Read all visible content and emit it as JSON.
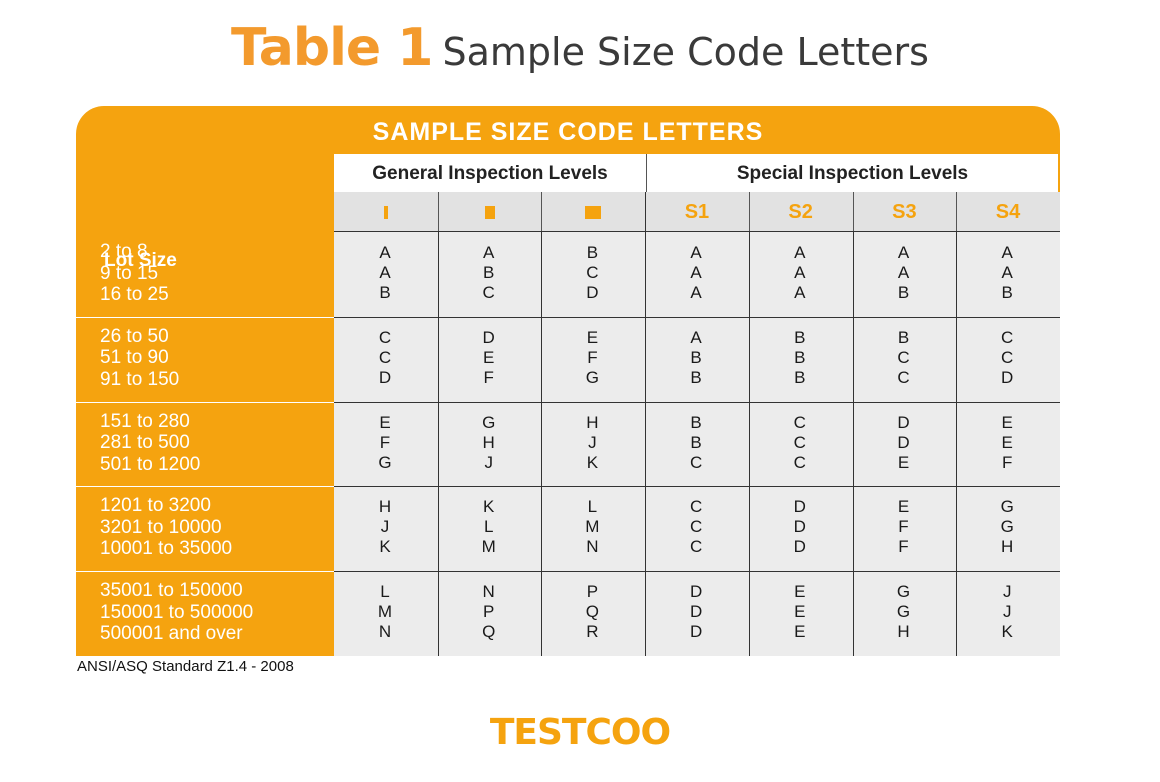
{
  "title": {
    "strong": "Table 1",
    "rest": "Sample Size Code Letters"
  },
  "table": {
    "banner": "SAMPLE SIZE CODE LETTERS",
    "lot_header": "Lot Size",
    "groups": [
      "General Inspection Levels",
      "Special Inspection Levels"
    ],
    "levels": [
      "I",
      "II",
      "III",
      "S1",
      "S2",
      "S3",
      "S4"
    ],
    "accent_color": "#f5a30f",
    "row_groups": [
      {
        "lots": [
          "2 to 8",
          "9 to 15",
          "16 to 25"
        ],
        "codes": [
          [
            "A",
            "A",
            "B"
          ],
          [
            "A",
            "B",
            "C"
          ],
          [
            "B",
            "C",
            "D"
          ],
          [
            "A",
            "A",
            "A"
          ],
          [
            "A",
            "A",
            "A"
          ],
          [
            "A",
            "A",
            "B"
          ],
          [
            "A",
            "A",
            "B"
          ]
        ]
      },
      {
        "lots": [
          "26 to 50",
          "51 to 90",
          "91 to 150"
        ],
        "codes": [
          [
            "C",
            "C",
            "D"
          ],
          [
            "D",
            "E",
            "F"
          ],
          [
            "E",
            "F",
            "G"
          ],
          [
            "A",
            "B",
            "B"
          ],
          [
            "B",
            "B",
            "B"
          ],
          [
            "B",
            "C",
            "C"
          ],
          [
            "C",
            "C",
            "D"
          ]
        ]
      },
      {
        "lots": [
          "151 to 280",
          "281 to 500",
          "501 to 1200"
        ],
        "codes": [
          [
            "E",
            "F",
            "G"
          ],
          [
            "G",
            "H",
            "J"
          ],
          [
            "H",
            "J",
            "K"
          ],
          [
            "B",
            "B",
            "C"
          ],
          [
            "C",
            "C",
            "C"
          ],
          [
            "D",
            "D",
            "E"
          ],
          [
            "E",
            "E",
            "F"
          ]
        ]
      },
      {
        "lots": [
          "1201 to 3200",
          "3201 to 10000",
          "10001 to 35000"
        ],
        "codes": [
          [
            "H",
            "J",
            "K"
          ],
          [
            "K",
            "L",
            "M"
          ],
          [
            "L",
            "M",
            "N"
          ],
          [
            "C",
            "C",
            "C"
          ],
          [
            "D",
            "D",
            "D"
          ],
          [
            "E",
            "F",
            "F"
          ],
          [
            "G",
            "G",
            "H"
          ]
        ]
      },
      {
        "lots": [
          "35001 to 150000",
          "150001 to 500000",
          "500001 and over"
        ],
        "codes": [
          [
            "L",
            "M",
            "N"
          ],
          [
            "N",
            "P",
            "Q"
          ],
          [
            "P",
            "Q",
            "R"
          ],
          [
            "D",
            "D",
            "D"
          ],
          [
            "E",
            "E",
            "E"
          ],
          [
            "G",
            "G",
            "H"
          ],
          [
            "J",
            "J",
            "K"
          ]
        ]
      }
    ]
  },
  "footnote": "ANSI/ASQ Standard Z1.4 - 2008",
  "brand": "TESTCOO"
}
